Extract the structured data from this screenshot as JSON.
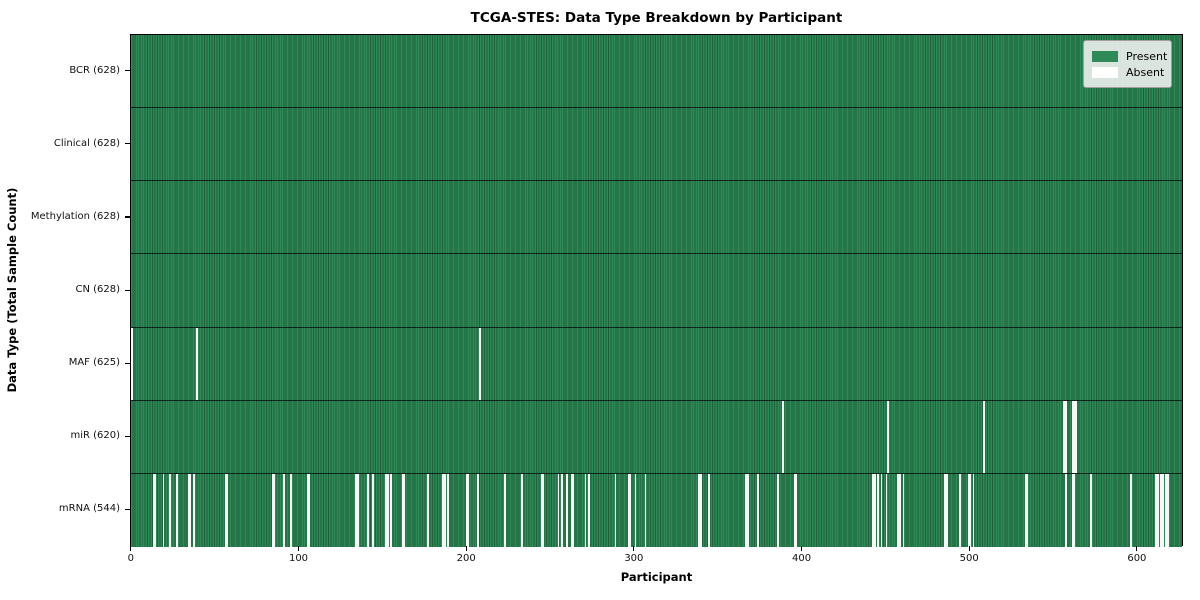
{
  "figure": {
    "title": "TCGA-STES: Data Type Breakdown by Participant",
    "xlabel": "Participant",
    "ylabel": "Data Type (Total Sample Count)"
  },
  "legend": {
    "present_label": "Present",
    "absent_label": "Absent",
    "position": "upper right"
  },
  "colors": {
    "present": "#2e8b57",
    "present_edge": "#1f5f3b",
    "absent": "#f7f7f7",
    "row_separator": "rgba(0,0,0,0.7)",
    "plot_border": "#000000"
  },
  "chart_data": {
    "type": "heatmap",
    "title": "TCGA-STES: Data Type Breakdown by Participant",
    "xlabel": "Participant",
    "ylabel": "Data Type (Total Sample Count)",
    "x_ticks": [
      0,
      100,
      200,
      300,
      400,
      500,
      600
    ],
    "n_participants": 628,
    "value_encoding": {
      "present": 1,
      "absent": 0
    },
    "legend_entries": [
      "Present",
      "Absent"
    ],
    "legend_position": "upper right",
    "grid": false,
    "rows": [
      {
        "label": "BCR (628)",
        "data_type": "BCR",
        "present_count": 628,
        "absent_participants": []
      },
      {
        "label": "Clinical (628)",
        "data_type": "Clinical",
        "present_count": 628,
        "absent_participants": []
      },
      {
        "label": "Methylation (628)",
        "data_type": "Methylation",
        "present_count": 628,
        "absent_participants": []
      },
      {
        "label": "CN (628)",
        "data_type": "CN",
        "present_count": 628,
        "absent_participants": []
      },
      {
        "label": "MAF (625)",
        "data_type": "MAF",
        "present_count": 625,
        "absent_participants": [
          0,
          39,
          208
        ]
      },
      {
        "label": "miR (620)",
        "data_type": "miR",
        "present_count": 620,
        "absent_participants": [
          389,
          452,
          509,
          557,
          558,
          562,
          563,
          564
        ]
      },
      {
        "label": "mRNA (544)",
        "data_type": "mRNA",
        "present_count": 544,
        "absent_participants": [
          13,
          14,
          19,
          23,
          27,
          34,
          35,
          37,
          56,
          57,
          84,
          85,
          91,
          95,
          105,
          106,
          134,
          135,
          141,
          144,
          152,
          153,
          155,
          162,
          163,
          177,
          186,
          187,
          189,
          200,
          201,
          207,
          223,
          233,
          245,
          246,
          255,
          257,
          260,
          263,
          264,
          271,
          273,
          289,
          297,
          298,
          301,
          307,
          339,
          340,
          345,
          367,
          368,
          374,
          386,
          396,
          397,
          443,
          444,
          446,
          448,
          451,
          458,
          459,
          461,
          486,
          487,
          495,
          500,
          501,
          503,
          534,
          535,
          558,
          562,
          563,
          573,
          597,
          612,
          613,
          615,
          616,
          618,
          619
        ]
      }
    ]
  }
}
